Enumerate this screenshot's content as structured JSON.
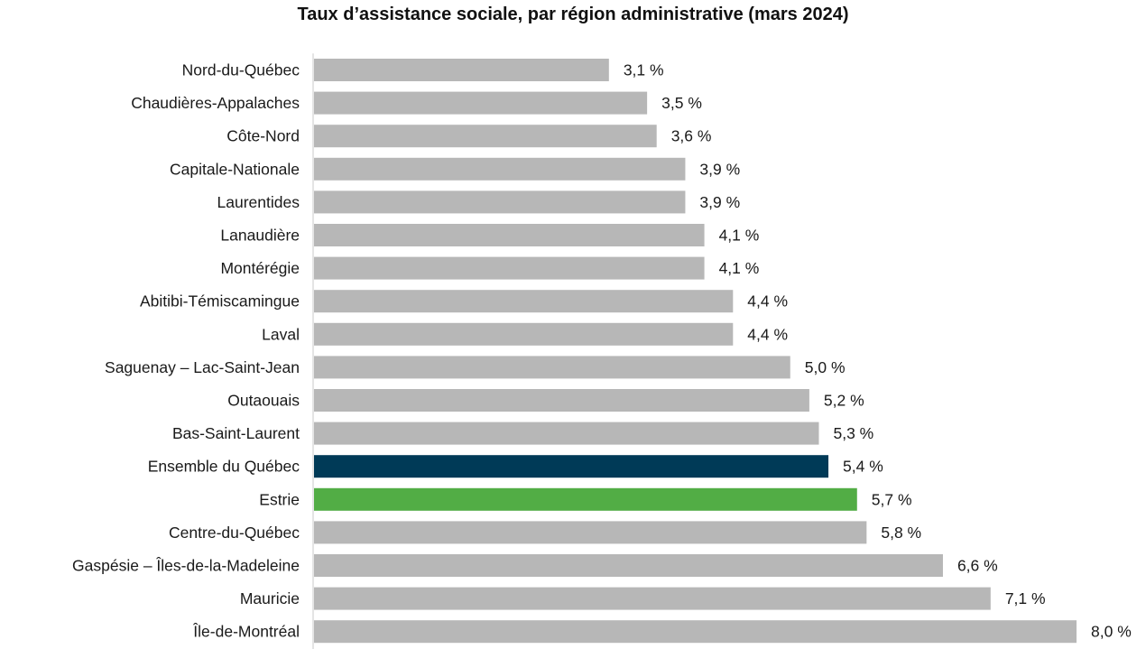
{
  "chart_data": {
    "type": "bar",
    "orientation": "horizontal",
    "title": "Taux d’assistance sociale, par région administrative (mars 2024)",
    "xlabel": "",
    "ylabel": "",
    "xlim": [
      0,
      8.0
    ],
    "grid": false,
    "legend": "none",
    "categories": [
      "Nord-du-Québec",
      "Chaudières-Appalaches",
      "Côte-Nord",
      "Capitale-Nationale",
      "Laurentides",
      "Lanaudière",
      "Montérégie",
      "Abitibi-Témiscamingue",
      "Laval",
      "Saguenay – Lac-Saint-Jean",
      "Outaouais",
      "Bas-Saint-Laurent",
      "Ensemble du Québec",
      "Estrie",
      "Centre-du-Québec",
      "Gaspésie – Îles-de-la-Madeleine",
      "Mauricie",
      "Île-de-Montréal"
    ],
    "values": [
      3.1,
      3.5,
      3.6,
      3.9,
      3.9,
      4.1,
      4.1,
      4.4,
      4.4,
      5.0,
      5.2,
      5.3,
      5.4,
      5.7,
      5.8,
      6.6,
      7.1,
      8.0
    ],
    "value_labels": [
      "3,1 %",
      "3,5 %",
      "3,6 %",
      "3,9 %",
      "3,9 %",
      "4,1 %",
      "4,1 %",
      "4,4 %",
      "4,4 %",
      "5,0 %",
      "5,2 %",
      "5,3 %",
      "5,4 %",
      "5,7 %",
      "5,8 %",
      "6,6 %",
      "7,1 %",
      "8,0 %"
    ],
    "colors": {
      "default": "#b7b7b7",
      "highlight": {
        "Ensemble du Québec": "#003a57",
        "Estrie": "#52ad45"
      },
      "axis": "#c8c8c8",
      "label": "#1a1a1a"
    }
  }
}
